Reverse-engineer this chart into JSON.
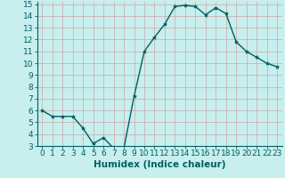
{
  "x": [
    0,
    1,
    2,
    3,
    4,
    5,
    6,
    7,
    8,
    9,
    10,
    11,
    12,
    13,
    14,
    15,
    16,
    17,
    18,
    19,
    20,
    21,
    22,
    23
  ],
  "y": [
    6,
    5.5,
    5.5,
    5.5,
    4.5,
    3.2,
    3.7,
    2.8,
    2.8,
    7.2,
    11,
    12.2,
    13.3,
    14.8,
    14.9,
    14.8,
    14.1,
    14.7,
    14.2,
    11.8,
    11,
    10.5,
    10,
    9.7
  ],
  "line_color": "#006060",
  "marker": "*",
  "marker_size": 3,
  "bg_color": "#c8eeee",
  "grid_color": "#c8a8a8",
  "xlabel": "Humidex (Indice chaleur)",
  "xlim": [
    -0.5,
    23.5
  ],
  "ylim": [
    3,
    15.2
  ],
  "yticks": [
    3,
    4,
    5,
    6,
    7,
    8,
    9,
    10,
    11,
    12,
    13,
    14,
    15
  ],
  "xticks": [
    0,
    1,
    2,
    3,
    4,
    5,
    6,
    7,
    8,
    9,
    10,
    11,
    12,
    13,
    14,
    15,
    16,
    17,
    18,
    19,
    20,
    21,
    22,
    23
  ],
  "axis_color": "#006060",
  "tick_color": "#006060",
  "xlabel_fontsize": 7.5,
  "tick_fontsize": 6.5
}
